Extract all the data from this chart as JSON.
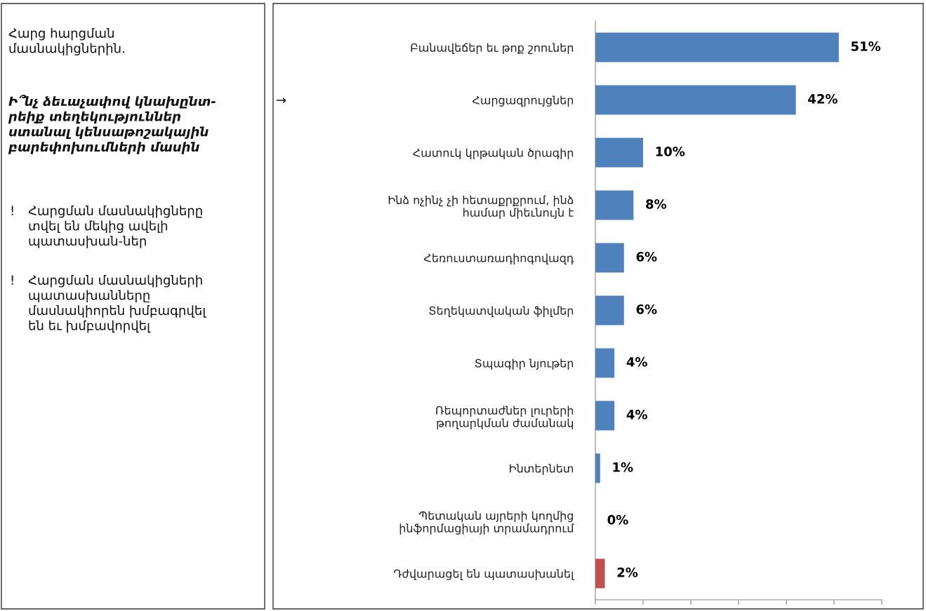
{
  "chart_data": {
    "type": "bar",
    "orientation": "horizontal",
    "categories": [
      "Բանավեճեր եւ թոք շոուներ",
      "Հարցազրույցներ",
      "Հատուկ կրթական ծրագիր",
      "Ինձ ոչինչ չի հետաքրքրում, ինձ\nհամար միեւնույն է",
      "Հեռուստառադիոգովազդ",
      "Տեղեկատվական ֆիլմեր",
      "Տպագիր նյութեր",
      "Ռեպորտաժներ լուրերի\nթողարկման ժամանակ",
      "Ինտերնետ",
      "Պետական այրերի կողմից\nինֆորմացիայի տրամադրում",
      "Դժվարացել են պատասխանել"
    ],
    "values": [
      51,
      42,
      10,
      8,
      6,
      6,
      4,
      4,
      1,
      0,
      2
    ],
    "colors": [
      "#4f81bd",
      "#4f81bd",
      "#4f81bd",
      "#4f81bd",
      "#4f81bd",
      "#4f81bd",
      "#4f81bd",
      "#4f81bd",
      "#4f81bd",
      "#4f81bd",
      "#c0504d"
    ],
    "value_labels": [
      "51%",
      "42%",
      "10%",
      "8%",
      "6%",
      "6%",
      "4%",
      "4%",
      "1%",
      "0%",
      "2%"
    ],
    "xlim": [
      0,
      60
    ],
    "xticks": [
      {
        "value": 0,
        "label": null
      },
      {
        "value": 10,
        "label": null
      },
      {
        "value": 20,
        "label": null
      },
      {
        "value": 30,
        "label": null
      },
      {
        "value": 40,
        "label": null
      },
      {
        "value": 50,
        "label": null
      },
      {
        "value": 60,
        "label": null
      }
    ],
    "tick_labels": "y",
    "grid": false,
    "legend": false,
    "annotations": [
      "Հարց հարցման\nմասնակիցներին.",
      "Ի՞նչ ձեւաչափով կնախընտ-\nրեիք տեղեկություններ\nստանալ կենսաթոշակային\nբարեփոխումների մասին",
      "!",
      "Հարցման մասնակիցները\nտվել են մեկից ավելի\nպատասխան-ներ",
      "!",
      "Հարցման մասնակիցների\nպատասխանները\nմասնակիորեն խմբագրվել\nեն եւ խմբավորվել",
      "→"
    ]
  }
}
